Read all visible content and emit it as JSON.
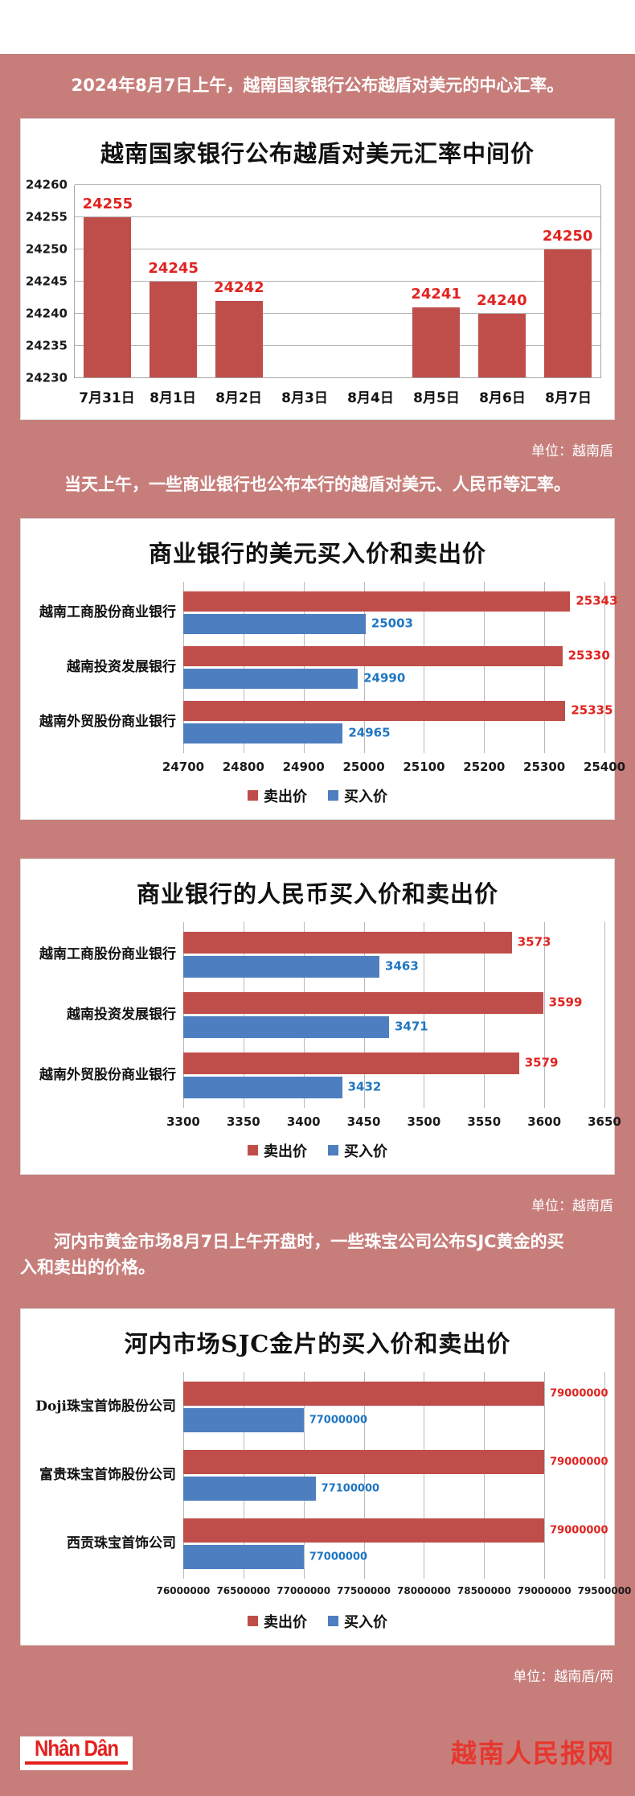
{
  "texts": {
    "intro1": "2024年8月7日上午，越南国家银行公布越盾对美元的中心汇率。",
    "unit1": "单位：越南盾",
    "intro2": "当天上午，一些商业银行也公布本行的越盾对美元、人民币等汇率。",
    "unit2": "单位：越南盾",
    "intro3": "河内市黄金市场8月7日上午开盘时，一些珠宝公司公布SJC黄金的买\n入和卖出的价格。",
    "unit3": "单位：越南盾/两"
  },
  "footer": {
    "logo_text": "Nhân Dân",
    "site_name": "越南人民报网"
  },
  "colors": {
    "background": "#c77e7b",
    "sell_bar": "#bf4e4a",
    "buy_bar": "#4d7ebf",
    "sell_label": "#e02320",
    "buy_label": "#1f76c2"
  },
  "chart_data": [
    {
      "type": "bar",
      "title": "越南国家银行公布越盾对美元汇率中间价",
      "unit": "越南盾",
      "categories": [
        "7月31日",
        "8月1日",
        "8月2日",
        "8月3日",
        "8月4日",
        "8月5日",
        "8月6日",
        "8月7日"
      ],
      "values": [
        24255,
        24245,
        24242,
        null,
        null,
        24241,
        24240,
        24250
      ],
      "ylim": [
        24230,
        24260
      ],
      "yticks": [
        24230,
        24235,
        24240,
        24245,
        24250,
        24255,
        24260
      ],
      "bar_color": "#bf4e4a",
      "label_color": "#e02320",
      "grid": true,
      "legend": false
    },
    {
      "type": "hbar",
      "title": "商业银行的美元买入价和卖出价",
      "unit": "越南盾",
      "categories": [
        "越南工商股份商业银行",
        "越南投资发展银行",
        "越南外贸股份商业银行"
      ],
      "series": [
        {
          "name": "卖出价",
          "color": "#bf4e4a",
          "label_color": "#e02320",
          "values": [
            25343,
            25330,
            25335
          ]
        },
        {
          "name": "买入价",
          "color": "#4d7ebf",
          "label_color": "#1f76c2",
          "values": [
            25003,
            24990,
            24965
          ]
        }
      ],
      "xlim": [
        24700,
        25400
      ],
      "xticks": [
        24700,
        24800,
        24900,
        25000,
        25100,
        25200,
        25300,
        25400
      ],
      "grid": true,
      "legend_position": "bottom"
    },
    {
      "type": "hbar",
      "title": "商业银行的人民币买入价和卖出价",
      "unit": "越南盾",
      "categories": [
        "越南工商股份商业银行",
        "越南投资发展银行",
        "越南外贸股份商业银行"
      ],
      "series": [
        {
          "name": "卖出价",
          "color": "#bf4e4a",
          "label_color": "#e02320",
          "values": [
            3573,
            3599,
            3579
          ]
        },
        {
          "name": "买入价",
          "color": "#4d7ebf",
          "label_color": "#1f76c2",
          "values": [
            3463,
            3471,
            3432
          ]
        }
      ],
      "xlim": [
        3300,
        3650
      ],
      "xticks": [
        3300,
        3350,
        3400,
        3450,
        3500,
        3550,
        3600,
        3650
      ],
      "grid": true,
      "legend_position": "bottom"
    },
    {
      "type": "hbar",
      "title": "河内市场SJC金片的买入价和卖出价",
      "unit": "越南盾/两",
      "categories": [
        "Doji珠宝首饰股份公司",
        "富贵珠宝首饰股份公司",
        "西贡珠宝首饰公司"
      ],
      "series": [
        {
          "name": "卖出价",
          "color": "#bf4e4a",
          "label_color": "#e02320",
          "values": [
            79000000,
            79000000,
            79000000
          ]
        },
        {
          "name": "买入价",
          "color": "#4d7ebf",
          "label_color": "#1f76c2",
          "values": [
            77000000,
            77100000,
            77000000
          ]
        }
      ],
      "xlim": [
        76000000,
        79500000
      ],
      "xticks": [
        76000000,
        76500000,
        77000000,
        77500000,
        78000000,
        78500000,
        79000000,
        79500000
      ],
      "grid": true,
      "legend_position": "bottom"
    }
  ]
}
